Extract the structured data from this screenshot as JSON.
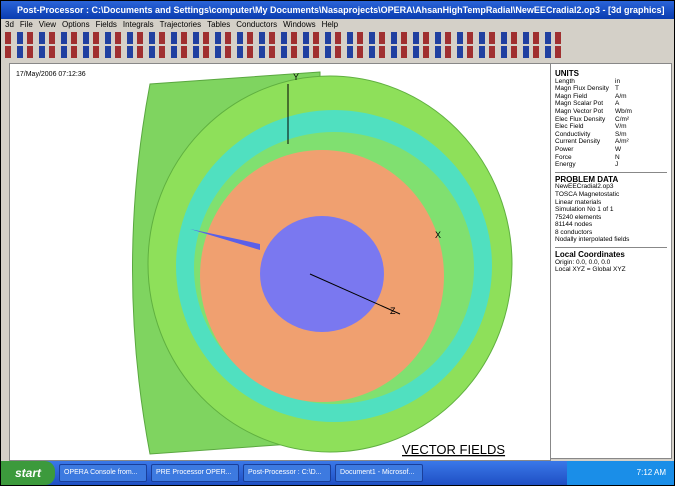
{
  "window": {
    "title": "Post-Processor : C:\\Documents and Settings\\computer\\My Documents\\Nasaprojects\\OPERA\\AhsanHighTempRadial\\NewEECradial2.op3 - [3d graphics]"
  },
  "menu": [
    "3d",
    "File",
    "View",
    "Options",
    "Fields",
    "Integrals",
    "Trajectories",
    "Tables",
    "Conductors",
    "Windows",
    "Help"
  ],
  "viewport": {
    "timestamp": "17/May/2006 07:12:36",
    "axes": {
      "y": "Y",
      "x": "X",
      "z": "Z"
    },
    "logo": "VECTOR FIELDS"
  },
  "units": {
    "heading": "UNITS",
    "rows": [
      [
        "Length",
        "in"
      ],
      [
        "Magn Flux Density",
        "T"
      ],
      [
        "Magn Field",
        "A/m"
      ],
      [
        "Magn Scalar Pot",
        "A"
      ],
      [
        "Magn Vector Pot",
        "Wb/m"
      ],
      [
        "Elec Flux Density",
        "C/m²"
      ],
      [
        "Elec Field",
        "V/m"
      ],
      [
        "Conductivity",
        "S/m"
      ],
      [
        "Current Density",
        "A/m²"
      ],
      [
        "Power",
        "W"
      ],
      [
        "Force",
        "N"
      ],
      [
        "Energy",
        "J"
      ]
    ]
  },
  "problem": {
    "heading": "PROBLEM DATA",
    "lines": [
      "NewEECradial2.op3",
      "TOSCA Magnetostatic",
      "Linear materials",
      "Simulation No 1 of 1",
      "75240 elements",
      "81144 nodes",
      "8 conductors",
      "Nodally interpolated fields"
    ]
  },
  "coords": {
    "heading": "Local Coordinates",
    "lines": [
      "Origin: 0.0, 0.0, 0.0",
      "Local XYZ = Global XYZ"
    ]
  },
  "taskbar": {
    "start": "start",
    "tasks": [
      "OPERA Console from...",
      "PRE Processor OPER...",
      "Post-Processor : C:\\D...",
      "Document1 - Microsof..."
    ],
    "clock": "7:12 AM"
  }
}
